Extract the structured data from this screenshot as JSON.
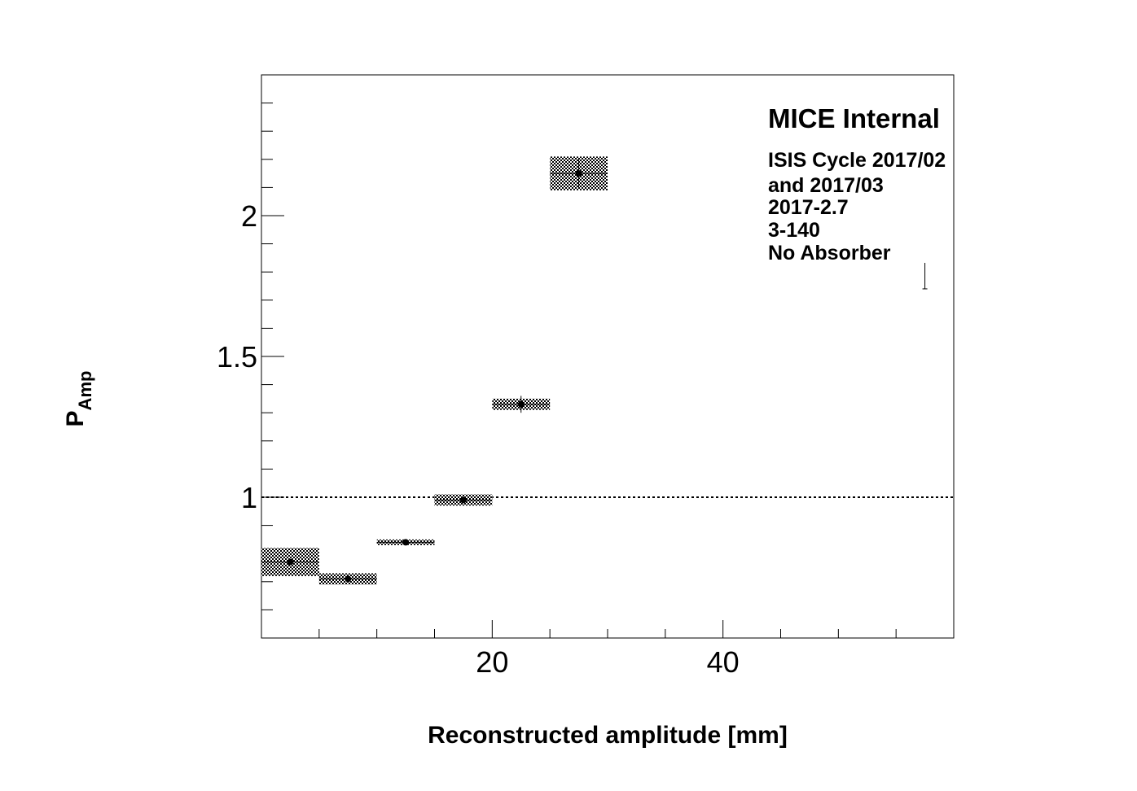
{
  "chart_data": {
    "type": "scatter",
    "title": "",
    "xlabel": "Reconstructed amplitude [mm]",
    "ylabel_main": "P",
    "ylabel_sub": "Amp",
    "xlim": [
      0,
      60
    ],
    "ylim": [
      0.5,
      2.5
    ],
    "x_tick_labels": [
      {
        "value": 20,
        "label": "20"
      },
      {
        "value": 40,
        "label": "40"
      }
    ],
    "y_tick_labels": [
      {
        "value": 1,
        "label": "1"
      },
      {
        "value": 1.5,
        "label": "1.5"
      },
      {
        "value": 2,
        "label": "2"
      }
    ],
    "reference_line": {
      "y": 1.0,
      "style": "dotted"
    },
    "series": [
      {
        "points": [
          {
            "x": 2.5,
            "y": 0.77,
            "bin_low": 0,
            "bin_high": 5,
            "sys_low": 0.72,
            "sys_high": 0.82,
            "stat_err": 0.01
          },
          {
            "x": 7.5,
            "y": 0.71,
            "bin_low": 5,
            "bin_high": 10,
            "sys_low": 0.69,
            "sys_high": 0.73,
            "stat_err": 0.008
          },
          {
            "x": 12.5,
            "y": 0.84,
            "bin_low": 10,
            "bin_high": 15,
            "sys_low": 0.83,
            "sys_high": 0.85,
            "stat_err": 0.008
          },
          {
            "x": 17.5,
            "y": 0.99,
            "bin_low": 15,
            "bin_high": 20,
            "sys_low": 0.97,
            "sys_high": 1.01,
            "stat_err": 0.01
          },
          {
            "x": 22.5,
            "y": 1.33,
            "bin_low": 20,
            "bin_high": 25,
            "sys_low": 1.31,
            "sys_high": 1.35,
            "stat_err": 0.03
          },
          {
            "x": 27.5,
            "y": 2.15,
            "bin_low": 25,
            "bin_high": 30,
            "sys_low": 2.09,
            "sys_high": 2.21,
            "stat_err": 0.05
          }
        ]
      }
    ],
    "stray_error_bar": {
      "x": 57.5,
      "y_low": 1.74,
      "y_high": 1.87
    },
    "annotations": {
      "header": "MICE Internal",
      "lines": [
        "ISIS Cycle 2017/02",
        "and 2017/03",
        "2017-2.7",
        "3-140",
        "No Absorber"
      ]
    },
    "grid": false,
    "legend": "none"
  }
}
